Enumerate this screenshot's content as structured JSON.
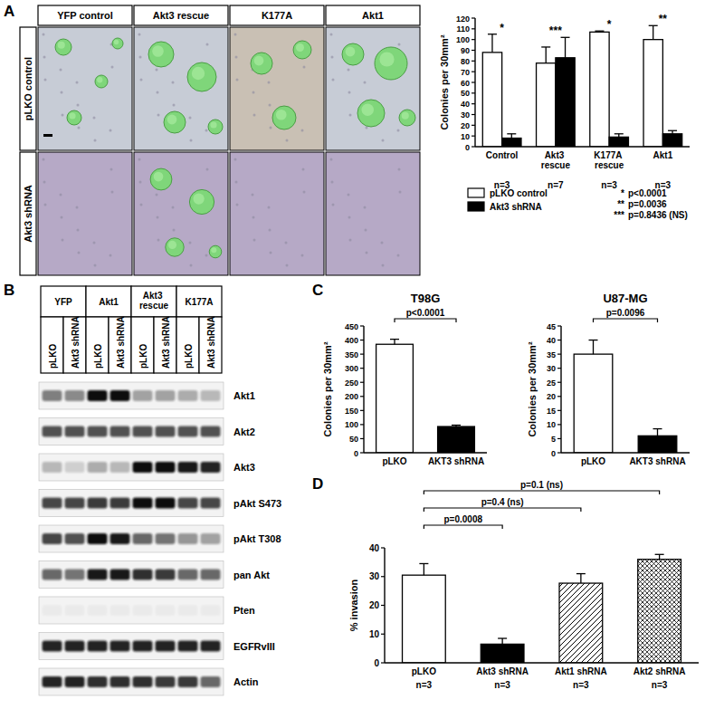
{
  "figure": {
    "panel_labels": [
      "A",
      "B",
      "C",
      "D"
    ],
    "A": {
      "columns": [
        "YFP control",
        "Akt3 rescue",
        "K177A",
        "Akt1"
      ],
      "rows": [
        "pLKO control",
        "Akt3 shRNA"
      ]
    },
    "B": {
      "groups": [
        "YFP",
        "Akt1",
        "Akt3 rescue",
        "K177A"
      ],
      "lanes": [
        "pLKO",
        "Akt3 shRNA"
      ],
      "rows": [
        {
          "label": "Akt1",
          "bands": [
            0.5,
            0.45,
            1,
            1,
            0.35,
            0.35,
            0.3,
            0.25
          ]
        },
        {
          "label": "Akt2",
          "bands": [
            0.7,
            0.7,
            0.7,
            0.7,
            0.7,
            0.7,
            0.7,
            0.7
          ]
        },
        {
          "label": "Akt3",
          "bands": [
            0.25,
            0.15,
            0.3,
            0.25,
            1,
            1,
            0.95,
            0.9
          ]
        },
        {
          "label": "pAkt S473",
          "bands": [
            0.75,
            0.75,
            0.8,
            0.8,
            1,
            1,
            0.75,
            0.75
          ]
        },
        {
          "label": "pAkt T308",
          "bands": [
            0.75,
            0.7,
            1,
            0.95,
            0.6,
            0.55,
            0.4,
            0.35
          ]
        },
        {
          "label": "pan Akt",
          "bands": [
            0.6,
            0.55,
            0.95,
            0.95,
            0.85,
            0.8,
            0.6,
            0.6
          ]
        },
        {
          "label": "Pten",
          "bands": [
            0.03,
            0.03,
            0.03,
            0.03,
            0.03,
            0.03,
            0.03,
            0.03
          ]
        },
        {
          "label": "EGFRvIII",
          "bands": [
            0.9,
            0.9,
            0.9,
            0.9,
            0.9,
            0.9,
            0.9,
            0.9
          ]
        },
        {
          "label": "Actin",
          "bands": [
            0.9,
            0.9,
            0.85,
            0.85,
            0.85,
            0.8,
            0.8,
            0.6
          ]
        }
      ]
    }
  },
  "chart_data": [
    {
      "type": "bar",
      "categories": [
        "Control",
        "Akt3 rescue",
        "K177A rescue",
        "Akt1"
      ],
      "y_label": "Colonies per 30mm²",
      "ylim": [
        0,
        120
      ],
      "yticks": [
        0,
        10,
        20,
        30,
        40,
        50,
        60,
        70,
        80,
        90,
        100,
        110,
        120
      ],
      "series": [
        {
          "name": "pLKO control",
          "color": "#ffffff",
          "values": [
            88,
            78,
            107,
            100
          ],
          "errors": [
            17,
            15,
            1,
            13
          ]
        },
        {
          "name": "Akt3 shRNA",
          "color": "#000000",
          "values": [
            8,
            83,
            9,
            12
          ],
          "errors": [
            4,
            19,
            3,
            3
          ]
        }
      ],
      "significance": [
        "*",
        "***",
        "*",
        "**"
      ],
      "n": [
        "n=3",
        "n=7",
        "n=3",
        "n=3"
      ],
      "p_values": [
        {
          "mark": "*",
          "text": "p<0.0001"
        },
        {
          "mark": "**",
          "text": "p=0.0036"
        },
        {
          "mark": "***",
          "text": "p=0.8436 (NS)"
        }
      ],
      "legend": "bottom"
    },
    {
      "type": "bar",
      "title": "T98G",
      "categories": [
        "pLKO",
        "AKT3 shRNA"
      ],
      "y_label": "Colonies per 30mm²",
      "values": [
        385,
        93
      ],
      "errors": [
        18,
        5
      ],
      "colors": [
        "#ffffff",
        "#000000"
      ],
      "ylim": [
        0,
        450
      ],
      "yticks": [
        0,
        50,
        100,
        150,
        200,
        250,
        300,
        350,
        400,
        450
      ],
      "comparisons": [
        {
          "between": [
            "pLKO",
            "AKT3 shRNA"
          ],
          "label": "p<0.0001"
        }
      ]
    },
    {
      "type": "bar",
      "title": "U87-MG",
      "categories": [
        "pLKO",
        "AKT3 shRNA"
      ],
      "y_label": "Colonies per 30mm²",
      "values": [
        35,
        6
      ],
      "errors": [
        5,
        2.5
      ],
      "colors": [
        "#ffffff",
        "#000000"
      ],
      "ylim": [
        0,
        45
      ],
      "yticks": [
        0,
        5,
        10,
        15,
        20,
        25,
        30,
        35,
        40,
        45
      ],
      "comparisons": [
        {
          "between": [
            "pLKO",
            "AKT3 shRNA"
          ],
          "label": "p=0.0096"
        }
      ]
    },
    {
      "type": "bar",
      "categories": [
        "pLKO",
        "Akt3 shRNA",
        "Akt1 shRNA",
        "Akt2 shRNA"
      ],
      "y_label": "% invasion",
      "values": [
        30.5,
        6.5,
        27.7,
        36
      ],
      "errors": [
        4,
        2,
        3.3,
        1.7
      ],
      "colors": [
        "#ffffff",
        "#000000",
        "#ffffff",
        "#ffffff"
      ],
      "ylim": [
        0,
        40
      ],
      "yticks": [
        0,
        10,
        20,
        30,
        40
      ],
      "n": [
        "n=3",
        "n=3",
        "n=3",
        "n=3"
      ],
      "comparisons": [
        {
          "between": [
            "pLKO",
            "Akt3 shRNA"
          ],
          "label": "p=0.0008"
        },
        {
          "between": [
            "pLKO",
            "Akt1 shRNA"
          ],
          "label": "p=0.4 (ns)"
        },
        {
          "between": [
            "pLKO",
            "Akt2 shRNA"
          ],
          "label": "p=0.1 (ns)"
        }
      ]
    }
  ]
}
